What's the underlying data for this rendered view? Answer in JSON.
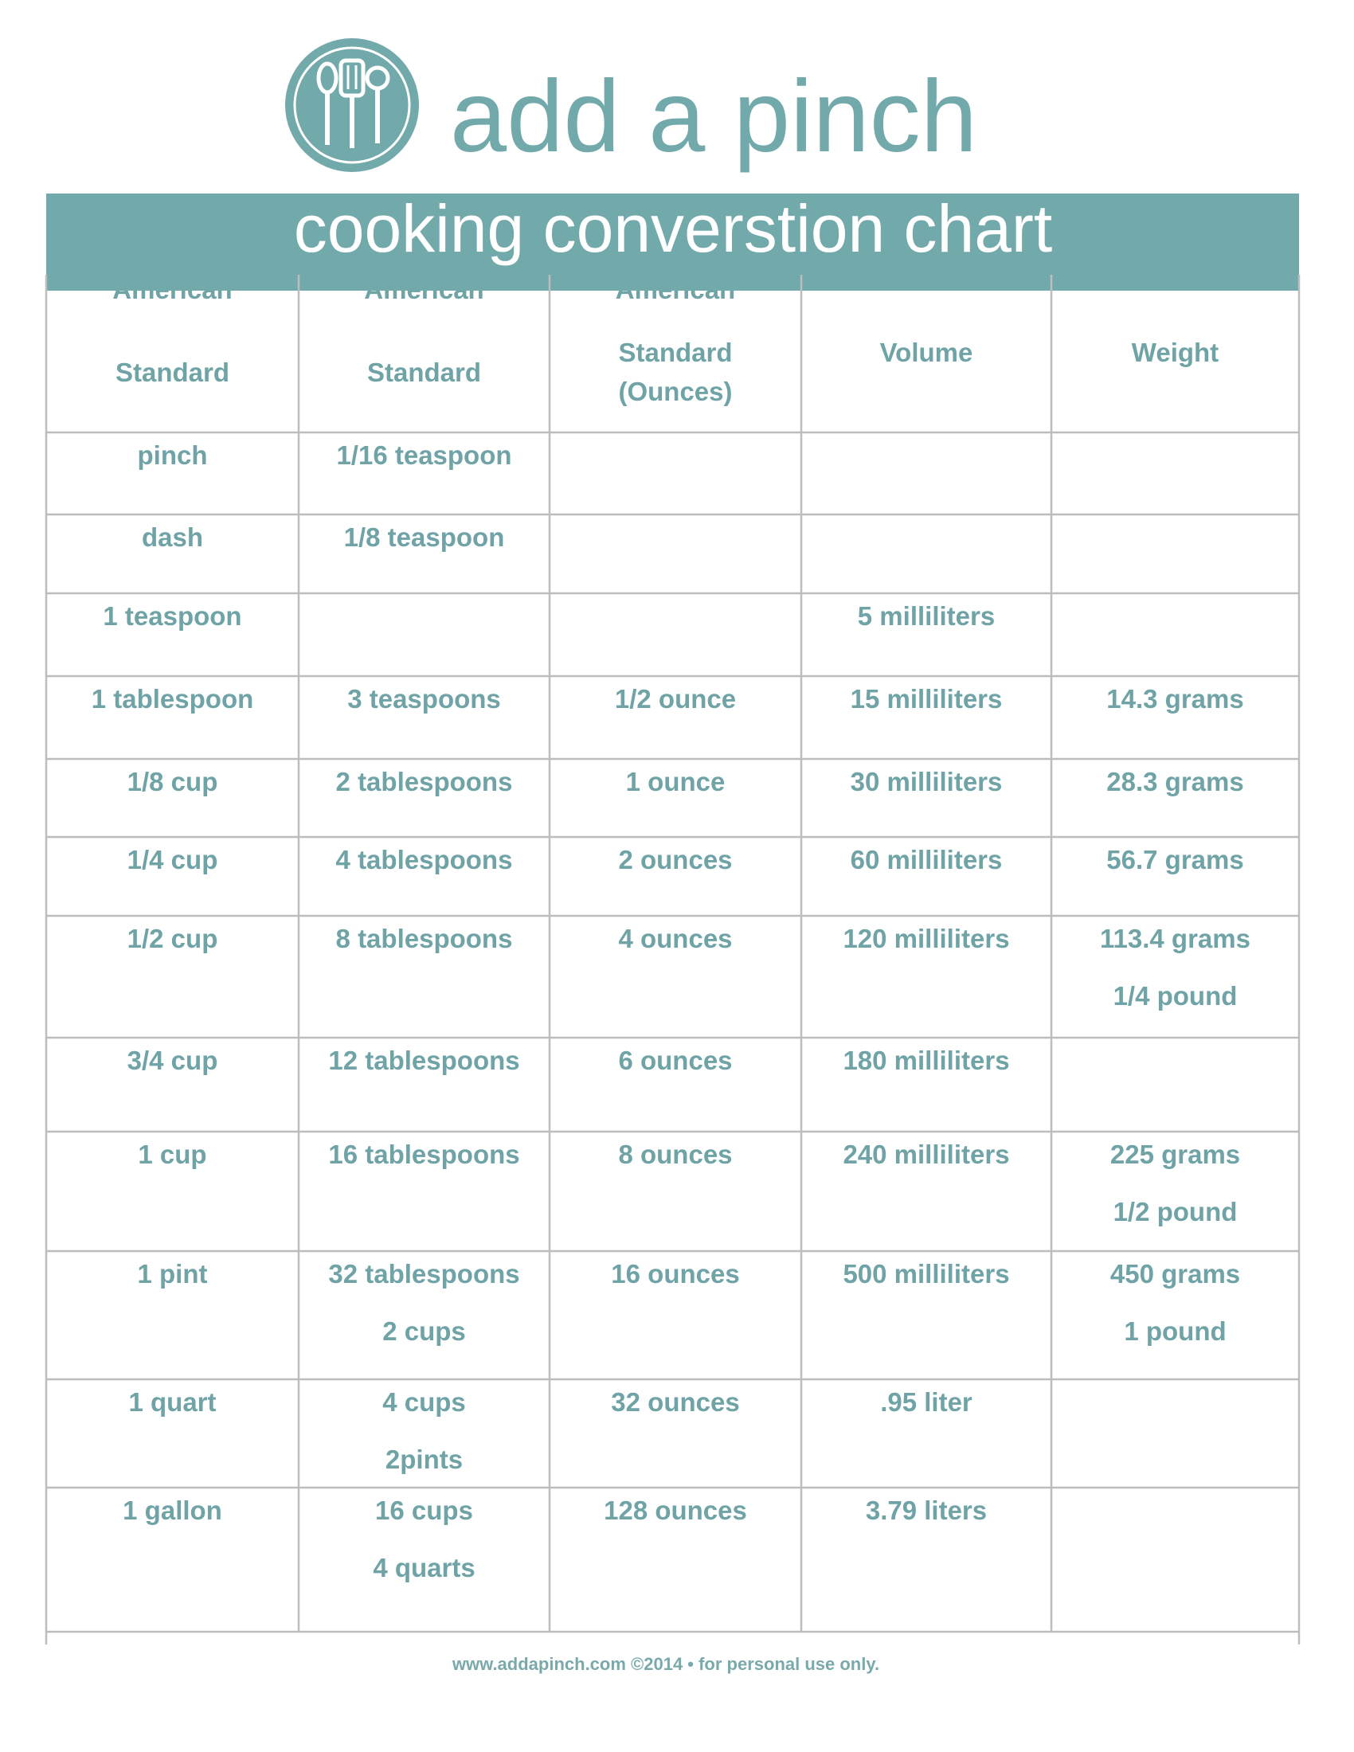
{
  "logo": {
    "text": "add a pinch"
  },
  "banner": {
    "title": "cooking converstion chart"
  },
  "table": {
    "header": [
      [
        "American",
        "Standard"
      ],
      [
        "American",
        "Standard"
      ],
      [
        "American",
        "Standard",
        "(Ounces)"
      ],
      [
        "Volume"
      ],
      [
        "Weight"
      ]
    ],
    "rows": [
      [
        [
          "pinch"
        ],
        [
          "1/16 teaspoon"
        ],
        null,
        null,
        null
      ],
      [
        [
          "dash"
        ],
        [
          "1/8 teaspoon"
        ],
        null,
        null,
        null
      ],
      [
        [
          "1 teaspoon"
        ],
        null,
        null,
        [
          "5 milliliters"
        ],
        null
      ],
      [
        [
          "1 tablespoon"
        ],
        [
          "3 teaspoons"
        ],
        [
          "1/2 ounce"
        ],
        [
          "15 milliliters"
        ],
        [
          "14.3 grams"
        ]
      ],
      [
        [
          "1/8 cup"
        ],
        [
          "2 tablespoons"
        ],
        [
          "1 ounce"
        ],
        [
          "30 milliliters"
        ],
        [
          "28.3 grams"
        ]
      ],
      [
        [
          "1/4 cup"
        ],
        [
          "4 tablespoons"
        ],
        [
          "2 ounces"
        ],
        [
          "60 milliliters"
        ],
        [
          "56.7 grams"
        ]
      ],
      [
        [
          "1/2 cup"
        ],
        [
          "8 tablespoons"
        ],
        [
          "4 ounces"
        ],
        [
          "120 milliliters"
        ],
        [
          "113.4 grams",
          "1/4 pound"
        ]
      ],
      [
        [
          "3/4 cup"
        ],
        [
          "12 tablespoons"
        ],
        [
          "6 ounces"
        ],
        [
          "180 milliliters"
        ],
        null
      ],
      [
        [
          "1 cup"
        ],
        [
          "16 tablespoons"
        ],
        [
          "8 ounces"
        ],
        [
          "240 milliliters"
        ],
        [
          "225 grams",
          "1/2 pound"
        ]
      ],
      [
        [
          "1 pint"
        ],
        [
          "32 tablespoons",
          "2 cups"
        ],
        [
          "16 ounces"
        ],
        [
          "500 milliliters"
        ],
        [
          "450 grams",
          "1 pound"
        ]
      ],
      [
        [
          "1 quart"
        ],
        [
          "4 cups",
          "2pints"
        ],
        [
          "32 ounces"
        ],
        [
          ".95 liter"
        ],
        null
      ],
      [
        [
          "1 gallon"
        ],
        [
          "16 cups",
          "4 quarts"
        ],
        [
          "128 ounces"
        ],
        [
          "3.79 liters"
        ],
        null
      ]
    ]
  },
  "footer": {
    "text": "www.addapinch.com ©2014  •  for personal use only."
  }
}
